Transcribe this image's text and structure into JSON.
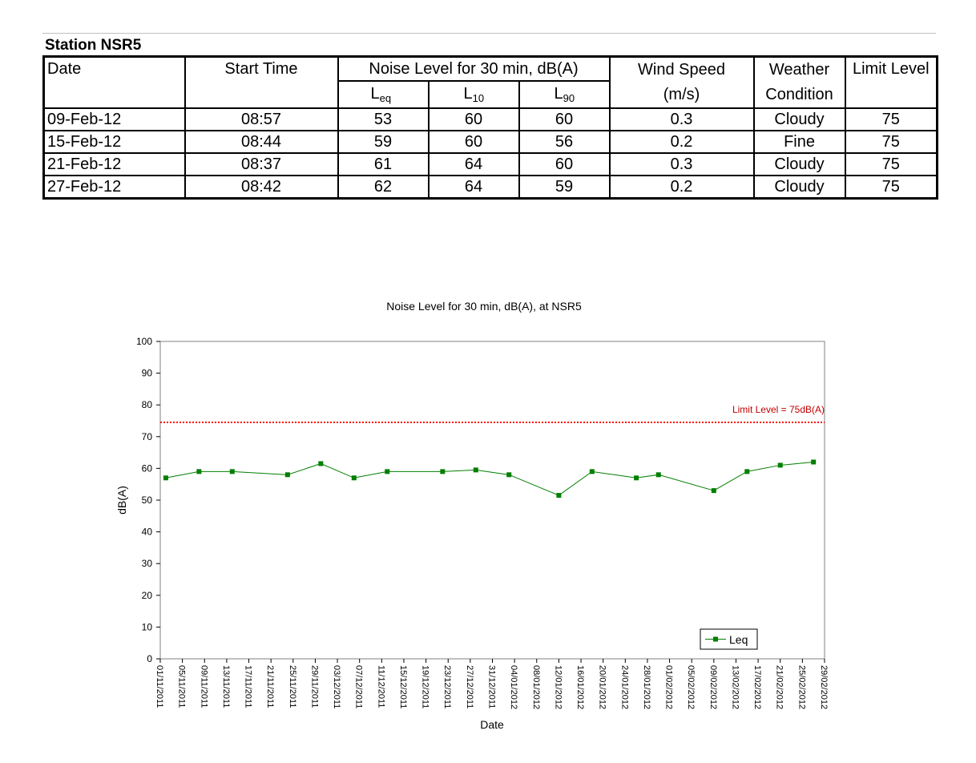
{
  "table": {
    "title": "Station NSR5",
    "headers": {
      "date": "Date",
      "start_time": "Start Time",
      "noise_level": "Noise Level for 30 min, dB(A)",
      "leq_main": "L",
      "leq_sub": "eq",
      "l10_main": "L",
      "l10_sub": "10",
      "l90_main": "L",
      "l90_sub": "90",
      "wind_speed_1": "Wind Speed",
      "wind_speed_2": "(m/s)",
      "weather_1": "Weather",
      "weather_2": "Condition",
      "limit_level": "Limit Level"
    },
    "rows": [
      {
        "date": "09-Feb-12",
        "time": "08:57",
        "leq": "53",
        "l10": "60",
        "l90": "60",
        "wind": "0.3",
        "weather": "Cloudy",
        "limit": "75"
      },
      {
        "date": "15-Feb-12",
        "time": "08:44",
        "leq": "59",
        "l10": "60",
        "l90": "56",
        "wind": "0.2",
        "weather": "Fine",
        "limit": "75"
      },
      {
        "date": "21-Feb-12",
        "time": "08:37",
        "leq": "61",
        "l10": "64",
        "l90": "60",
        "wind": "0.3",
        "weather": "Cloudy",
        "limit": "75"
      },
      {
        "date": "27-Feb-12",
        "time": "08:42",
        "leq": "62",
        "l10": "64",
        "l90": "59",
        "wind": "0.2",
        "weather": "Cloudy",
        "limit": "75"
      }
    ]
  },
  "chart_data": {
    "type": "line",
    "title": "Noise Level for 30 min, dB(A), at NSR5",
    "xlabel": "Date",
    "ylabel": "dB(A)",
    "ylim": [
      0,
      100
    ],
    "yticks": [
      0,
      10,
      20,
      30,
      40,
      50,
      60,
      70,
      80,
      90,
      100
    ],
    "xlim": [
      "2011-11-01",
      "2012-02-29"
    ],
    "xtick_labels": [
      "01/11/2011",
      "05/11/2011",
      "09/11/2011",
      "13/11/2011",
      "17/11/2011",
      "21/11/2011",
      "25/11/2011",
      "29/11/2011",
      "03/12/2011",
      "07/12/2011",
      "11/12/2011",
      "15/12/2011",
      "19/12/2011",
      "23/12/2011",
      "27/12/2011",
      "31/12/2011",
      "04/01/2012",
      "08/01/2012",
      "12/01/2012",
      "16/01/2012",
      "20/01/2012",
      "24/01/2012",
      "28/01/2012",
      "01/02/2012",
      "05/02/2012",
      "09/02/2012",
      "13/02/2012",
      "17/02/2012",
      "21/02/2012",
      "25/02/2012",
      "29/02/2012"
    ],
    "grid": false,
    "legend_position": "bottom-right",
    "series": [
      {
        "name": "Leq",
        "color": "#007f00",
        "x": [
          "2011-11-02",
          "2011-11-08",
          "2011-11-14",
          "2011-11-24",
          "2011-11-30",
          "2011-12-06",
          "2011-12-12",
          "2011-12-22",
          "2011-12-28",
          "2012-01-03",
          "2012-01-12",
          "2012-01-18",
          "2012-01-26",
          "2012-01-30",
          "2012-02-09",
          "2012-02-15",
          "2012-02-21",
          "2012-02-27"
        ],
        "values": [
          57,
          59,
          59,
          58,
          61.5,
          57,
          59,
          59,
          59.5,
          58,
          51.5,
          59,
          57,
          58,
          53,
          59,
          61,
          62
        ]
      }
    ],
    "reference_line": {
      "label": "Limit Level = 75dB(A)",
      "value": 74.5,
      "color": "#ff0000"
    }
  }
}
